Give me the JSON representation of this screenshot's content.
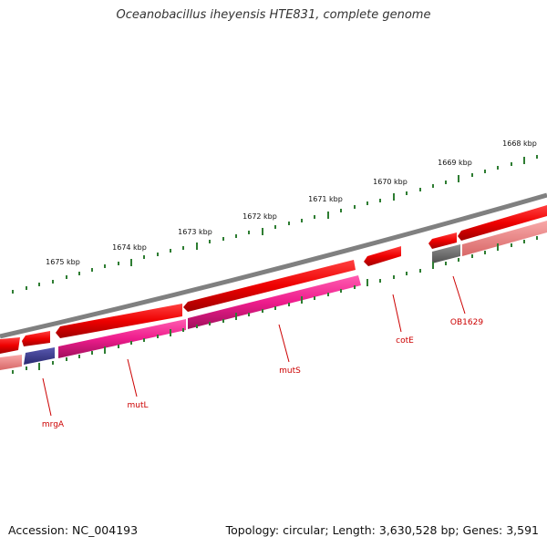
{
  "title": "Oceanobacillus iheyensis HTE831, complete genome",
  "footer": {
    "accession": "Accession: NC_004193",
    "summary": "Topology: circular; Length: 3,630,528 bp; Genes: 3,591"
  },
  "kbp_labels": [
    "1668 kbp",
    "1669 kbp",
    "1670 kbp",
    "1671 kbp",
    "1672 kbp",
    "1673 kbp",
    "1674 kbp",
    "1675 kbp"
  ],
  "gene_labels": [
    "OB1629",
    "cotE",
    "mutS",
    "mutL",
    "mrgA"
  ],
  "colors": {
    "backbone": "#808080",
    "gene_forward": "#ee0000",
    "gene_mutS_mutL": "#ee1c8c",
    "gene_mrgA": "#3c3c8c",
    "gene_OB1629": "#707070",
    "gene_pink": "#f08c8c",
    "tick": "#2e7d32",
    "label": "#cc0000"
  }
}
